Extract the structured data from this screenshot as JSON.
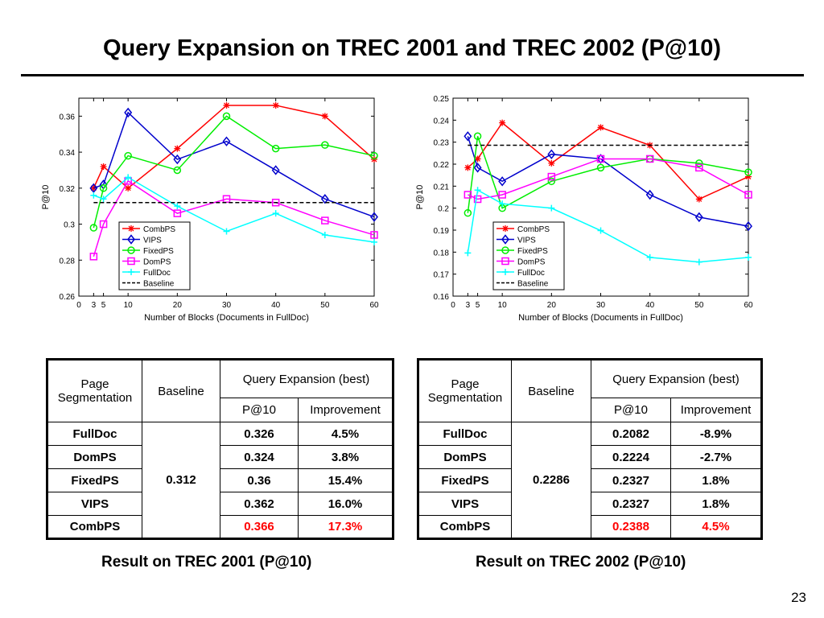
{
  "slide": {
    "title": "Query Expansion on TREC 2001 and TREC 2002 (P@10)",
    "page_number": "23"
  },
  "colors": {
    "CombPS": "#ff0000",
    "VIPS": "#0000cc",
    "FixedPS": "#00ee00",
    "DomPS": "#ff00ff",
    "FullDoc": "#00ffff",
    "Baseline": "#000000"
  },
  "chart_data": [
    {
      "type": "line",
      "xlabel": "Number of Blocks (Documents in FullDoc)",
      "ylabel": "P@10",
      "x": [
        3,
        5,
        10,
        20,
        30,
        40,
        50,
        60
      ],
      "xticks": [
        "0",
        "3",
        "5",
        "10",
        "20",
        "30",
        "40",
        "50",
        "60"
      ],
      "xtick_values": [
        0,
        3,
        5,
        10,
        20,
        30,
        40,
        50,
        60
      ],
      "xlim": [
        0,
        60
      ],
      "yticks": [
        "0.26",
        "0.28",
        "0.3",
        "0.32",
        "0.34",
        "0.36"
      ],
      "ytick_values": [
        0.26,
        0.28,
        0.3,
        0.32,
        0.34,
        0.36
      ],
      "ylim": [
        0.26,
        0.37
      ],
      "legend_position": "bottom-center",
      "series": [
        {
          "name": "CombPS",
          "marker": "star",
          "values": [
            0.32,
            0.332,
            0.32,
            0.342,
            0.366,
            0.366,
            0.36,
            0.336
          ]
        },
        {
          "name": "VIPS",
          "marker": "diamond",
          "values": [
            0.32,
            0.322,
            0.362,
            0.336,
            0.346,
            0.33,
            0.314,
            0.304
          ]
        },
        {
          "name": "FixedPS",
          "marker": "circle",
          "values": [
            0.298,
            0.32,
            0.338,
            0.33,
            0.36,
            0.342,
            0.344,
            0.338
          ]
        },
        {
          "name": "DomPS",
          "marker": "square",
          "values": [
            0.282,
            0.3,
            0.324,
            0.306,
            0.314,
            0.312,
            0.302,
            0.294
          ]
        },
        {
          "name": "FullDoc",
          "marker": "plus",
          "values": [
            0.316,
            0.314,
            0.326,
            0.31,
            0.296,
            0.306,
            0.294,
            0.29
          ]
        },
        {
          "name": "Baseline",
          "marker": "none",
          "dashed": true,
          "values": [
            0.312,
            0.312,
            0.312,
            0.312,
            0.312,
            0.312,
            0.312,
            0.312
          ]
        }
      ]
    },
    {
      "type": "line",
      "xlabel": "Number of Blocks (Documents in FullDoc)",
      "ylabel": "P@10",
      "x": [
        3,
        5,
        10,
        20,
        30,
        40,
        50,
        60
      ],
      "xticks": [
        "0",
        "3",
        "5",
        "10",
        "20",
        "30",
        "40",
        "50",
        "60"
      ],
      "xtick_values": [
        0,
        3,
        5,
        10,
        20,
        30,
        40,
        50,
        60
      ],
      "xlim": [
        0,
        60
      ],
      "yticks": [
        "0.16",
        "0.17",
        "0.18",
        "0.19",
        "0.2",
        "0.21",
        "0.22",
        "0.23",
        "0.24",
        "0.25"
      ],
      "ytick_values": [
        0.16,
        0.17,
        0.18,
        0.19,
        0.2,
        0.21,
        0.22,
        0.23,
        0.24,
        0.25
      ],
      "ylim": [
        0.16,
        0.25
      ],
      "legend_position": "bottom-center",
      "series": [
        {
          "name": "CombPS",
          "marker": "star",
          "values": [
            0.2184,
            0.2224,
            0.2388,
            0.2204,
            0.2367,
            0.2286,
            0.2041,
            0.2143
          ]
        },
        {
          "name": "VIPS",
          "marker": "diamond",
          "values": [
            0.2327,
            0.2184,
            0.2122,
            0.2245,
            0.2224,
            0.2061,
            0.1959,
            0.1918
          ]
        },
        {
          "name": "FixedPS",
          "marker": "circle",
          "values": [
            0.1978,
            0.2327,
            0.2,
            0.2122,
            0.2184,
            0.2224,
            0.2204,
            0.2163
          ]
        },
        {
          "name": "DomPS",
          "marker": "square",
          "values": [
            0.2061,
            0.2041,
            0.2061,
            0.2143,
            0.2224,
            0.2224,
            0.2184,
            0.2061
          ]
        },
        {
          "name": "FullDoc",
          "marker": "plus",
          "values": [
            0.1796,
            0.2082,
            0.202,
            0.2,
            0.1898,
            0.1776,
            0.1755,
            0.1776
          ]
        },
        {
          "name": "Baseline",
          "marker": "none",
          "dashed": true,
          "values": [
            0.2286,
            0.2286,
            0.2286,
            0.2286,
            0.2286,
            0.2286,
            0.2286,
            0.2286
          ]
        }
      ]
    }
  ],
  "tables": [
    {
      "caption": "Result on TREC 2001 (P@10)",
      "header": {
        "segmentation": "Page Segmentation",
        "baseline": "Baseline",
        "group": "Query Expansion (best)",
        "p10": "P@10",
        "improvement": "Improvement"
      },
      "baseline_value": "0.312",
      "rows": [
        {
          "method": "FullDoc",
          "p10": "0.326",
          "improvement": "4.5%"
        },
        {
          "method": "DomPS",
          "p10": "0.324",
          "improvement": "3.8%"
        },
        {
          "method": "FixedPS",
          "p10": "0.36",
          "improvement": "15.4%"
        },
        {
          "method": "VIPS",
          "p10": "0.362",
          "improvement": "16.0%"
        },
        {
          "method": "CombPS",
          "p10": "0.366",
          "improvement": "17.3%"
        }
      ]
    },
    {
      "caption": "Result on TREC 2002 (P@10)",
      "header": {
        "segmentation": "Page Segmentation",
        "baseline": "Baseline",
        "group": "Query Expansion (best)",
        "p10": "P@10",
        "improvement": "Improvement"
      },
      "baseline_value": "0.2286",
      "rows": [
        {
          "method": "FullDoc",
          "p10": "0.2082",
          "improvement": "-8.9%"
        },
        {
          "method": "DomPS",
          "p10": "0.2224",
          "improvement": "-2.7%"
        },
        {
          "method": "FixedPS",
          "p10": "0.2327",
          "improvement": "1.8%"
        },
        {
          "method": "VIPS",
          "p10": "0.2327",
          "improvement": "1.8%"
        },
        {
          "method": "CombPS",
          "p10": "0.2388",
          "improvement": "4.5%"
        }
      ]
    }
  ]
}
